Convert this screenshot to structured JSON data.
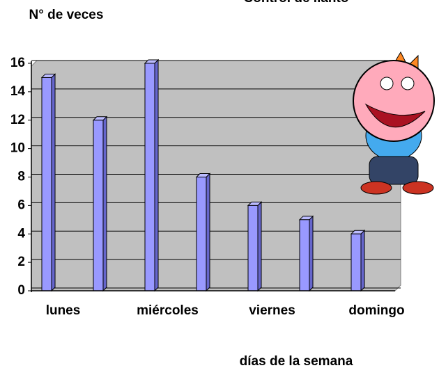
{
  "chart_data": {
    "type": "bar",
    "title": "Control de llanto",
    "y_label": "N° de veces",
    "x_label": "días de la semana",
    "categories": [
      "lunes",
      null,
      "miércoles",
      null,
      "viernes",
      null,
      "domingo"
    ],
    "values": [
      15,
      12,
      16,
      8,
      6,
      5,
      4
    ],
    "color": "#9999ff",
    "ylim": [
      0,
      16
    ],
    "yticks": [
      0,
      2,
      4,
      6,
      8,
      10,
      12,
      14,
      16
    ],
    "grid": true
  }
}
